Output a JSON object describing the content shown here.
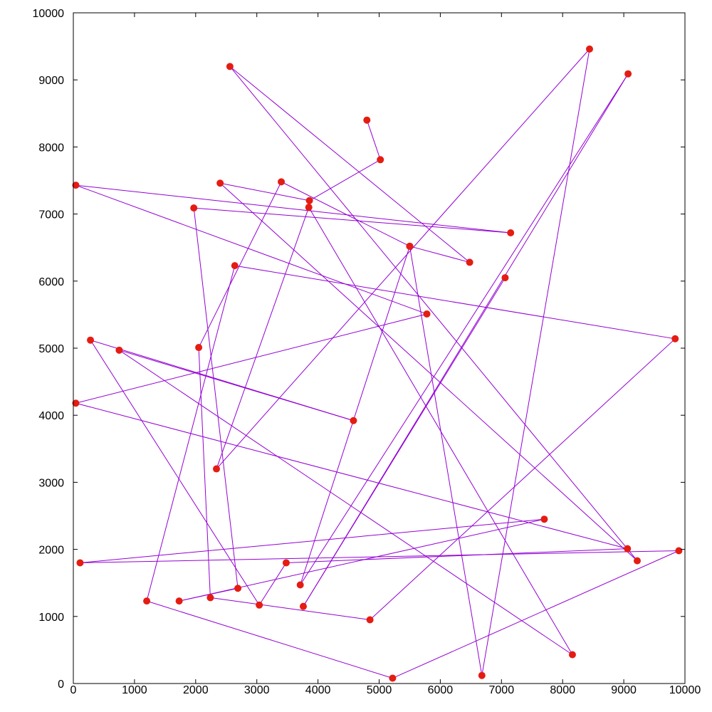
{
  "chart_data": {
    "type": "line",
    "title": "",
    "xlabel": "",
    "ylabel": "",
    "xlim": [
      0,
      10000
    ],
    "ylim": [
      0,
      10000
    ],
    "grid": false,
    "legend": "none",
    "xticks": [
      0,
      1000,
      2000,
      3000,
      4000,
      5000,
      6000,
      7000,
      8000,
      9000,
      10000
    ],
    "yticks": [
      0,
      1000,
      2000,
      3000,
      4000,
      5000,
      6000,
      7000,
      8000,
      9000,
      10000
    ],
    "colors": {
      "line": "#9400d3",
      "marker": "#e51c12",
      "axis": "#000000"
    },
    "series": [
      {
        "x": [
          4800,
          5020,
          3860,
          2400,
          9220,
          2560,
          6480,
          5500,
          6680,
          8440,
          2340,
          3850,
          8160,
          750,
          4580,
          280,
          3040,
          3480,
          9060,
          40,
          5780,
          40,
          7150,
          1970,
          2690,
          1730,
          7700,
          110,
          9900,
          5220,
          1200,
          2640,
          9840,
          4850,
          2240,
          2050,
          3400,
          5500,
          3710,
          9070,
          3760,
          7060
        ],
        "y": [
          8400,
          7810,
          7200,
          7460,
          1830,
          9200,
          6280,
          6520,
          120,
          9460,
          3200,
          7100,
          430,
          4970,
          3920,
          5120,
          1170,
          1800,
          2010,
          4180,
          5510,
          7430,
          6720,
          7090,
          1420,
          1230,
          2450,
          1800,
          1980,
          80,
          1230,
          6230,
          5140,
          950,
          1280,
          5010,
          7480,
          6520,
          1470,
          9090,
          1150,
          6050
        ]
      }
    ]
  },
  "x_tick_labels": [
    "0",
    "1000",
    "2000",
    "3000",
    "4000",
    "5000",
    "6000",
    "7000",
    "8000",
    "9000",
    "10000"
  ],
  "y_tick_labels": [
    "0",
    "1000",
    "2000",
    "3000",
    "4000",
    "5000",
    "6000",
    "7000",
    "8000",
    "9000",
    "10000"
  ]
}
